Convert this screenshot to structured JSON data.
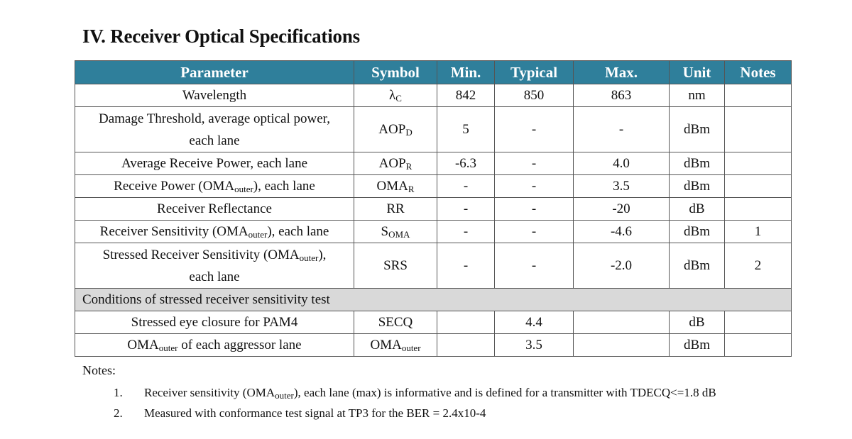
{
  "title": "IV. Receiver Optical Specifications",
  "table": {
    "headers": [
      "Parameter",
      "Symbol",
      "Min.",
      "Typical",
      "Max.",
      "Unit",
      "Notes"
    ],
    "rows": [
      {
        "param": "Wavelength",
        "symbol": "λ",
        "symbol_sub": "C",
        "min": "842",
        "typ": "850",
        "max": "863",
        "unit": "nm",
        "notes": ""
      },
      {
        "param": "Damage Threshold, average optical power,",
        "param2": "each lane",
        "symbol": "AOP",
        "symbol_sub": "D",
        "min": "5",
        "typ": "-",
        "max": "-",
        "unit": "dBm",
        "notes": ""
      },
      {
        "param": "Average Receive Power, each lane",
        "symbol": "AOP",
        "symbol_sub": "R",
        "min": "-6.3",
        "typ": "-",
        "max": "4.0",
        "unit": "dBm",
        "notes": ""
      },
      {
        "param_pre": "Receive Power (OMA",
        "param_sub": "outer",
        "param_post": "), each lane",
        "symbol": "OMA",
        "symbol_sub": "R",
        "min": "-",
        "typ": "-",
        "max": "3.5",
        "unit": "dBm",
        "notes": ""
      },
      {
        "param": "Receiver Reflectance",
        "symbol": "RR",
        "min": "-",
        "typ": "-",
        "max": "-20",
        "unit": "dB",
        "notes": ""
      },
      {
        "param_pre": "Receiver Sensitivity (OMA",
        "param_sub": "outer",
        "param_post": "), each lane",
        "symbol": "S",
        "symbol_sub": "OMA",
        "min": "-",
        "typ": "-",
        "max": "-4.6",
        "unit": "dBm",
        "notes": "1"
      },
      {
        "param_pre": "Stressed Receiver Sensitivity (OMA",
        "param_sub": "outer",
        "param_post": "),",
        "param2": "each lane",
        "symbol": "SRS",
        "min": "-",
        "typ": "-",
        "max": "-2.0",
        "unit": "dBm",
        "notes": "2"
      }
    ],
    "conditions_label": "Conditions of stressed receiver sensitivity test",
    "cond_rows": [
      {
        "param": "Stressed eye closure for PAM4",
        "symbol": "SECQ",
        "min": "",
        "typ": "4.4",
        "max": "",
        "unit": "dB",
        "notes": ""
      },
      {
        "param_pre": "OMA",
        "param_sub": "outer",
        "param_post": " of each aggressor lane",
        "symbol": "OMA",
        "symbol_sub": "outer",
        "min": "",
        "typ": "3.5",
        "max": "",
        "unit": "dBm",
        "notes": ""
      }
    ]
  },
  "notes": {
    "title": "Notes:",
    "items": [
      {
        "num": "1.",
        "pre": "Receiver sensitivity (OMA",
        "sub": "outer",
        "post": "), each lane (max) is informative and is defined for a transmitter with TDECQ<=1.8 dB"
      },
      {
        "num": "2.",
        "pre": "Measured with conformance test signal at TP3 for the BER = 2.4x10-4",
        "sub": "",
        "post": ""
      }
    ]
  }
}
